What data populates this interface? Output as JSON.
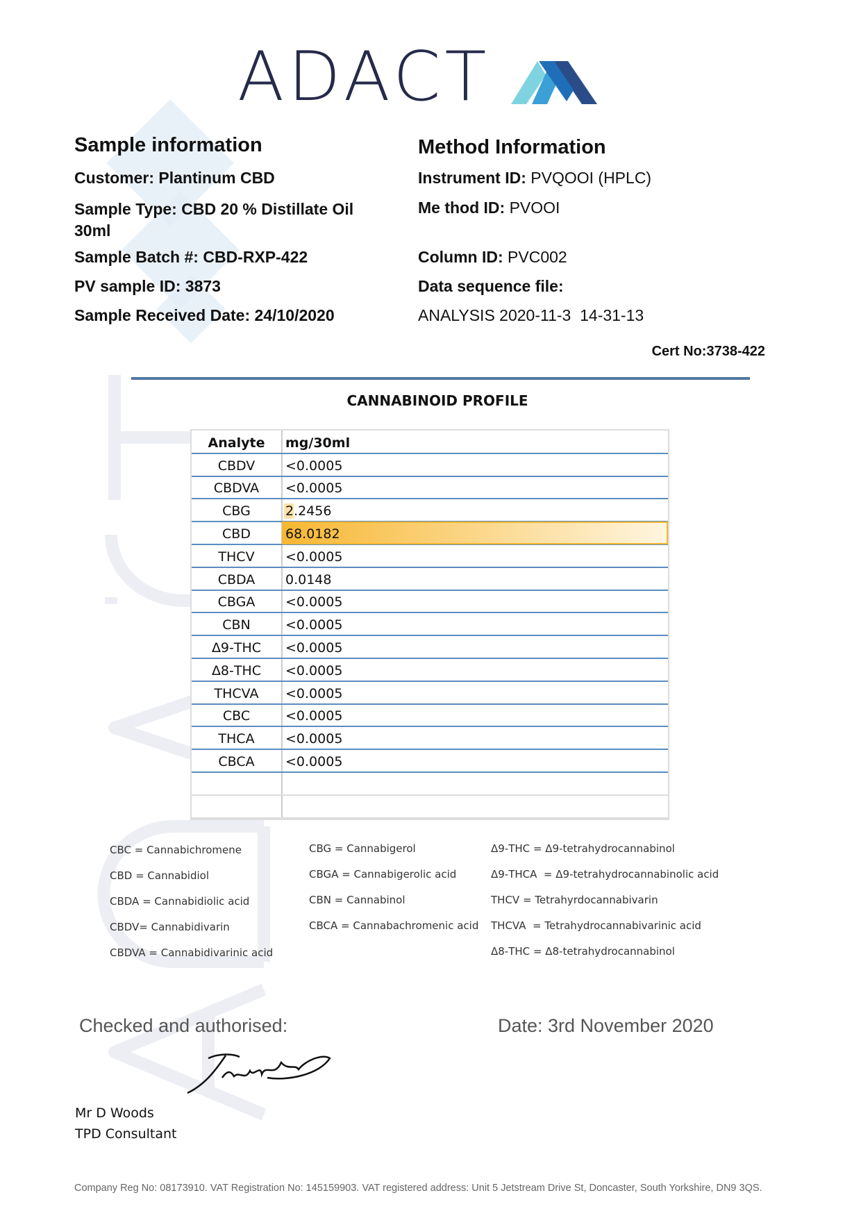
{
  "logo": {
    "text": "ADACT",
    "mark": "chevron-logo-mark"
  },
  "watermark": "ADACT",
  "sample": {
    "heading": "Sample information",
    "rows": [
      {
        "label": "Customer:",
        "value": "Plantinum CBD"
      },
      {
        "label": "Sample Type:",
        "value": "CBD 20 % Distillate Oil 30ml"
      },
      {
        "label": "Sample Batch #:",
        "value": "CBD-RXP-422"
      },
      {
        "label": "PV sample ID:",
        "value": "3873"
      },
      {
        "label": "Sample Received Date:",
        "value": "24/10/2020"
      }
    ]
  },
  "method": {
    "heading": "Method Information",
    "rows": [
      {
        "label": "Instrument ID:",
        "value": "PVQOOI (HPLC)"
      },
      {
        "label": "Me thod ID:",
        "value": "PVOOI"
      },
      {
        "label": "Column ID:",
        "value": "PVC002"
      },
      {
        "label": "Data sequence file:",
        "value": ""
      }
    ],
    "sequence_value": "ANALYSIS 2020-11-3  14-31-13"
  },
  "cert_no": "Cert No:3738-422",
  "profile": {
    "title": "CANNABINOID PROFILE",
    "headers": [
      "Analyte",
      "mg/30ml"
    ],
    "rows": [
      [
        "CBDV",
        "<0.0005"
      ],
      [
        "CBDVA",
        "<0.0005"
      ],
      [
        "CBG",
        "2.2456"
      ],
      [
        "CBD",
        "68.0182"
      ],
      [
        "THCV",
        "<0.0005"
      ],
      [
        "CBDA",
        "0.0148"
      ],
      [
        "CBGA",
        "<0.0005"
      ],
      [
        "CBN",
        "<0.0005"
      ],
      [
        "Δ9-THC",
        "<0.0005"
      ],
      [
        "Δ8-THC",
        "<0.0005"
      ],
      [
        "THCVA",
        "<0.0005"
      ],
      [
        "CBC",
        "<0.0005"
      ],
      [
        "THCA",
        "<0.0005"
      ],
      [
        "CBCA",
        "<0.0005"
      ]
    ],
    "highlight_color": "#f7b733"
  },
  "legend": {
    "col1": [
      "CBC = Cannabichromene",
      "CBD = Cannabidiol",
      "CBDA = Cannabidiolic acid",
      "CBDV= Cannabidivarin",
      "CBDVA = Cannabidivarinic acid"
    ],
    "col2": [
      "CBG = Cannabigerol",
      "CBGA = Cannabigerolic acid",
      "CBN = Cannabinol",
      "CBCA = Cannabachromenic acid"
    ],
    "col3": [
      "Δ9-THC = Δ9-tetrahydrocannabinol",
      "Δ9-THCA  = Δ9-tetrahydrocannabinolic acid",
      "THCV = Tetrahyrdocannabivarin",
      "THCVA  = Tetrahydrocannabivarinic acid",
      "Δ8-THC = Δ8-tetrahydrocannabinol"
    ]
  },
  "auth": {
    "label": "Checked and authorised:",
    "date": "Date: 3rd November 2020",
    "name": "Mr D Woods",
    "role": "TPD Consultant"
  },
  "footer": "Company Reg No: 08173910. VAT Registration No: 145159903. VAT registered address: Unit 5 Jetstream Drive St, Doncaster, South Yorkshire, DN9 3QS."
}
